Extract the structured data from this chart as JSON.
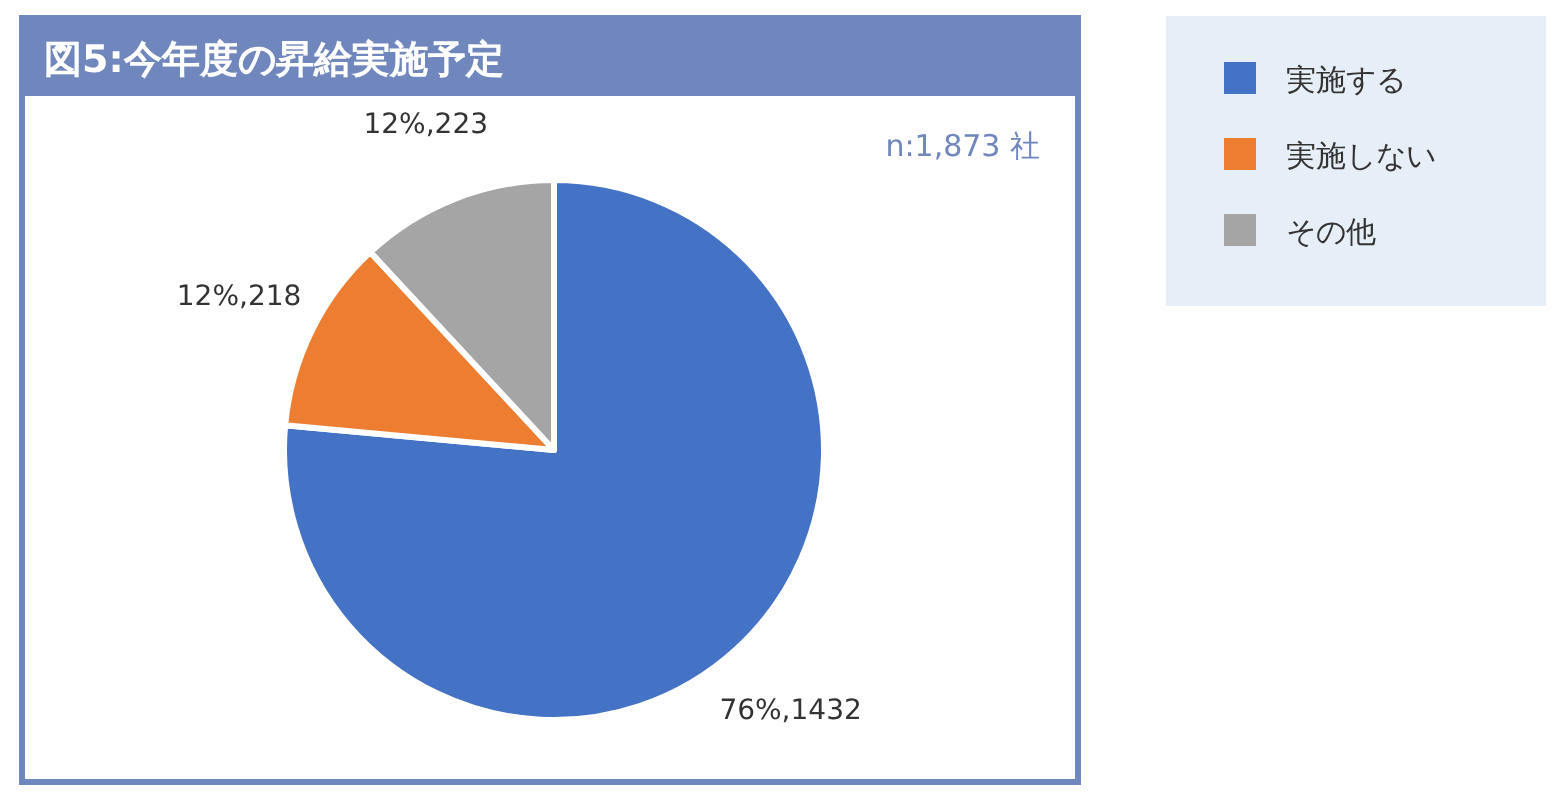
{
  "chart_data": {
    "type": "pie",
    "title": "図5:今年度の昇給実施予定",
    "categories": [
      "実施する",
      "実施しない",
      "その他"
    ],
    "values": [
      1432,
      218,
      223
    ],
    "colors": [
      "#4472c4",
      "#ed7d31",
      "#a5a5a5"
    ],
    "value_labels": [
      "76%,1432",
      "12%,218",
      "12%,223"
    ],
    "annotations": [
      "n:1,873 社"
    ],
    "legend": "top right"
  }
}
